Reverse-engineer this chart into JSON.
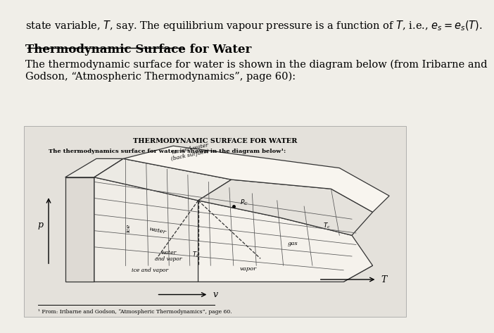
{
  "bg_color": "#f0eee8",
  "text_color": "#000000",
  "heading": "Thermodynamic Surface for Water",
  "body": "The thermodynamic surface for water is shown in the diagram below (from Iribarne and\nGodson, “Atmospheric Thermodynamics”, page 60):",
  "diagram_title": "THERMODYNAMIC SURFACE FOR WATER",
  "diagram_subtitle": "The thermodynamics surface for water is shown in the diagram below¹:",
  "footnote": "¹ From: Iribarne and Godson, “Atmospheric Thermodynamics”, page 60.",
  "edge_color": "#333333",
  "stripe_color": "#555555",
  "face_light": "#f5f3ef",
  "face_mid": "#e8e5df",
  "face_dark": "#dedad4"
}
